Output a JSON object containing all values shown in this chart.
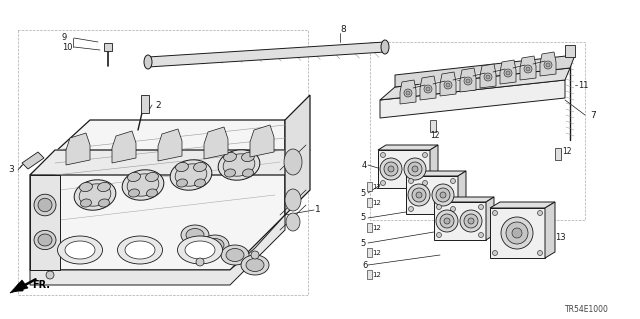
{
  "background_color": "#ffffff",
  "line_color": "#1a1a1a",
  "gray_light": "#cccccc",
  "gray_mid": "#888888",
  "diagram_code": "TR54E1000",
  "figsize": [
    6.4,
    3.19
  ],
  "dpi": 100,
  "lw_main": 0.8,
  "lw_thin": 0.4,
  "lw_dash": 0.5,
  "font_label": 5.5,
  "font_code": 5.0
}
